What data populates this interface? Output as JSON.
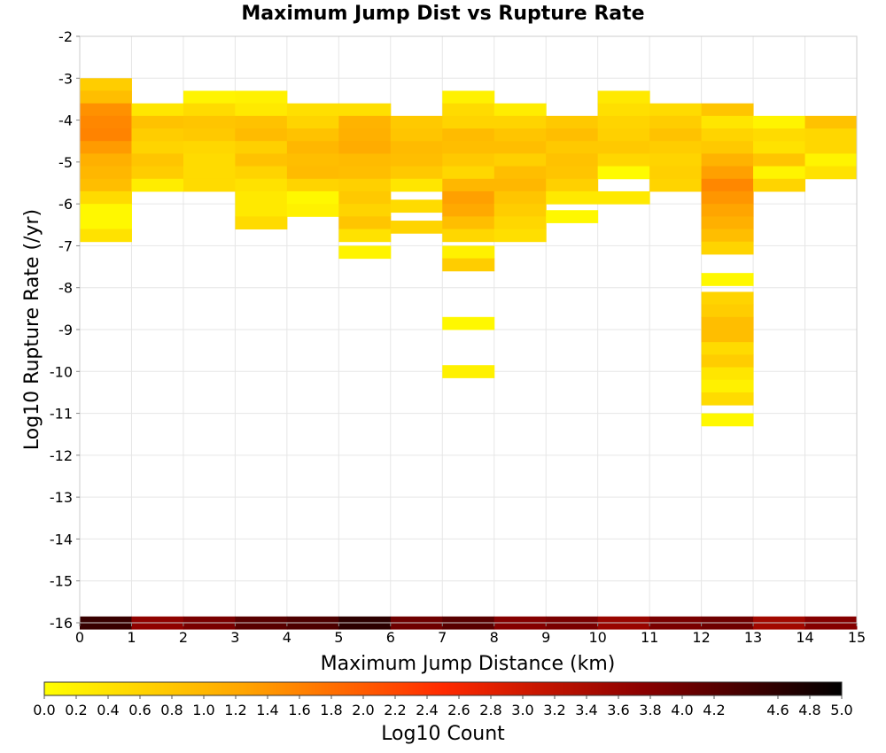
{
  "chart_data": {
    "type": "heatmap",
    "title": "Maximum Jump Dist vs Rupture Rate",
    "xlabel": "Maximum Jump Distance (km)",
    "ylabel": "Log10 Rupture Rate (/yr)",
    "xlim": [
      0,
      15
    ],
    "ylim": [
      -16,
      -2
    ],
    "x_ticks": [
      "0",
      "1",
      "2",
      "3",
      "4",
      "5",
      "6",
      "7",
      "8",
      "9",
      "10",
      "11",
      "12",
      "13",
      "14",
      "15"
    ],
    "y_ticks": [
      "-16",
      "-15",
      "-14",
      "-13",
      "-12",
      "-11",
      "-10",
      "-9",
      "-8",
      "-7",
      "-6",
      "-5",
      "-4",
      "-3",
      "-2"
    ],
    "y_bin_width": 0.3,
    "grid": true,
    "colorbar": {
      "label": "Log10 Count",
      "range": [
        0,
        5
      ],
      "ticks": [
        "0.0",
        "0.2",
        "0.4",
        "0.6",
        "0.8",
        "1.0",
        "1.2",
        "1.4",
        "1.6",
        "1.8",
        "2.0",
        "2.2",
        "2.4",
        "2.6",
        "2.8",
        "3.0",
        "3.2",
        "3.4",
        "3.6",
        "3.8",
        "4.0",
        "4.2",
        "4.6",
        "4.8",
        "5.0"
      ],
      "tick_values": [
        0,
        0.2,
        0.4,
        0.6,
        0.8,
        1.0,
        1.2,
        1.4,
        1.6,
        1.8,
        2.0,
        2.2,
        2.4,
        2.6,
        2.8,
        3.0,
        3.2,
        3.4,
        3.6,
        3.8,
        4.0,
        4.2,
        4.6,
        4.8,
        5.0
      ],
      "colors": [
        "#ffff00",
        "#ffa500",
        "#ff2a00",
        "#8b0000",
        "#000000"
      ]
    },
    "cells": [
      {
        "x": 0,
        "y": -3.15,
        "v": 0.7
      },
      {
        "x": 0,
        "y": -3.45,
        "v": 0.9
      },
      {
        "x": 0,
        "y": -3.75,
        "v": 1.45
      },
      {
        "x": 0,
        "y": -4.05,
        "v": 1.55
      },
      {
        "x": 0,
        "y": -4.35,
        "v": 1.6
      },
      {
        "x": 0,
        "y": -4.65,
        "v": 1.35
      },
      {
        "x": 0,
        "y": -4.95,
        "v": 1.1
      },
      {
        "x": 0,
        "y": -5.25,
        "v": 1.0
      },
      {
        "x": 0,
        "y": -5.55,
        "v": 0.9
      },
      {
        "x": 0,
        "y": -5.85,
        "v": 0.5
      },
      {
        "x": 0,
        "y": -6.15,
        "v": 0.1
      },
      {
        "x": 0,
        "y": -6.45,
        "v": 0.1
      },
      {
        "x": 0,
        "y": -6.75,
        "v": 0.4
      },
      {
        "x": 1,
        "y": -3.75,
        "v": 0.35
      },
      {
        "x": 1,
        "y": -4.05,
        "v": 0.85
      },
      {
        "x": 1,
        "y": -4.35,
        "v": 0.7
      },
      {
        "x": 1,
        "y": -4.65,
        "v": 0.6
      },
      {
        "x": 1,
        "y": -4.95,
        "v": 0.8
      },
      {
        "x": 1,
        "y": -5.25,
        "v": 0.7
      },
      {
        "x": 1,
        "y": -5.55,
        "v": 0.25
      },
      {
        "x": 2,
        "y": -3.45,
        "v": 0.15
      },
      {
        "x": 2,
        "y": -3.75,
        "v": 0.5
      },
      {
        "x": 2,
        "y": -4.05,
        "v": 0.8
      },
      {
        "x": 2,
        "y": -4.35,
        "v": 0.75
      },
      {
        "x": 2,
        "y": -4.65,
        "v": 0.55
      },
      {
        "x": 2,
        "y": -4.95,
        "v": 0.5
      },
      {
        "x": 2,
        "y": -5.25,
        "v": 0.5
      },
      {
        "x": 2,
        "y": -5.55,
        "v": 0.5
      },
      {
        "x": 3,
        "y": -3.45,
        "v": 0.2
      },
      {
        "x": 3,
        "y": -3.75,
        "v": 0.3
      },
      {
        "x": 3,
        "y": -4.05,
        "v": 0.85
      },
      {
        "x": 3,
        "y": -4.35,
        "v": 0.95
      },
      {
        "x": 3,
        "y": -4.65,
        "v": 0.65
      },
      {
        "x": 3,
        "y": -4.95,
        "v": 0.85
      },
      {
        "x": 3,
        "y": -5.25,
        "v": 0.6
      },
      {
        "x": 3,
        "y": -5.55,
        "v": 0.4
      },
      {
        "x": 3,
        "y": -5.85,
        "v": 0.3
      },
      {
        "x": 3,
        "y": -6.15,
        "v": 0.3
      },
      {
        "x": 3,
        "y": -6.45,
        "v": 0.5
      },
      {
        "x": 4,
        "y": -3.75,
        "v": 0.45
      },
      {
        "x": 4,
        "y": -4.05,
        "v": 0.6
      },
      {
        "x": 4,
        "y": -4.35,
        "v": 0.85
      },
      {
        "x": 4,
        "y": -4.65,
        "v": 1.0
      },
      {
        "x": 4,
        "y": -4.95,
        "v": 0.9
      },
      {
        "x": 4,
        "y": -5.25,
        "v": 0.95
      },
      {
        "x": 4,
        "y": -5.55,
        "v": 0.6
      },
      {
        "x": 4,
        "y": -5.85,
        "v": 0.1
      },
      {
        "x": 4,
        "y": -6.15,
        "v": 0.2
      },
      {
        "x": 5,
        "y": -3.75,
        "v": 0.45
      },
      {
        "x": 5,
        "y": -4.05,
        "v": 1.05
      },
      {
        "x": 5,
        "y": -4.35,
        "v": 1.1
      },
      {
        "x": 5,
        "y": -4.65,
        "v": 1.15
      },
      {
        "x": 5,
        "y": -4.95,
        "v": 0.95
      },
      {
        "x": 5,
        "y": -5.25,
        "v": 0.9
      },
      {
        "x": 5,
        "y": -5.55,
        "v": 0.65
      },
      {
        "x": 5,
        "y": -5.85,
        "v": 0.75
      },
      {
        "x": 5,
        "y": -6.15,
        "v": 0.6
      },
      {
        "x": 5,
        "y": -6.45,
        "v": 0.8
      },
      {
        "x": 5,
        "y": -6.75,
        "v": 0.4
      },
      {
        "x": 5,
        "y": -7.15,
        "v": 0.15
      },
      {
        "x": 6,
        "y": -4.05,
        "v": 0.75
      },
      {
        "x": 6,
        "y": -4.35,
        "v": 0.8
      },
      {
        "x": 6,
        "y": -4.65,
        "v": 0.95
      },
      {
        "x": 6,
        "y": -4.95,
        "v": 0.9
      },
      {
        "x": 6,
        "y": -5.25,
        "v": 0.75
      },
      {
        "x": 6,
        "y": -5.55,
        "v": 0.35
      },
      {
        "x": 6,
        "y": -6.05,
        "v": 0.5
      },
      {
        "x": 6,
        "y": -6.55,
        "v": 0.6
      },
      {
        "x": 7,
        "y": -3.45,
        "v": 0.2
      },
      {
        "x": 7,
        "y": -3.75,
        "v": 0.5
      },
      {
        "x": 7,
        "y": -4.05,
        "v": 0.6
      },
      {
        "x": 7,
        "y": -4.35,
        "v": 0.95
      },
      {
        "x": 7,
        "y": -4.65,
        "v": 0.9
      },
      {
        "x": 7,
        "y": -4.95,
        "v": 0.75
      },
      {
        "x": 7,
        "y": -5.25,
        "v": 0.55
      },
      {
        "x": 7,
        "y": -5.55,
        "v": 1.0
      },
      {
        "x": 7,
        "y": -5.85,
        "v": 1.3
      },
      {
        "x": 7,
        "y": -6.15,
        "v": 1.2
      },
      {
        "x": 7,
        "y": -6.45,
        "v": 0.9
      },
      {
        "x": 7,
        "y": -6.75,
        "v": 0.55
      },
      {
        "x": 7,
        "y": -7.15,
        "v": 0.2
      },
      {
        "x": 7,
        "y": -7.45,
        "v": 0.7
      },
      {
        "x": 7,
        "y": -8.85,
        "v": 0.1
      },
      {
        "x": 7,
        "y": -10.0,
        "v": 0.2
      },
      {
        "x": 8,
        "y": -3.75,
        "v": 0.25
      },
      {
        "x": 8,
        "y": -4.05,
        "v": 0.6
      },
      {
        "x": 8,
        "y": -4.35,
        "v": 0.8
      },
      {
        "x": 8,
        "y": -4.65,
        "v": 0.9
      },
      {
        "x": 8,
        "y": -4.95,
        "v": 0.65
      },
      {
        "x": 8,
        "y": -5.25,
        "v": 0.9
      },
      {
        "x": 8,
        "y": -5.55,
        "v": 1.0
      },
      {
        "x": 8,
        "y": -5.85,
        "v": 0.8
      },
      {
        "x": 8,
        "y": -6.15,
        "v": 0.7
      },
      {
        "x": 8,
        "y": -6.45,
        "v": 0.55
      },
      {
        "x": 8,
        "y": -6.75,
        "v": 0.45
      },
      {
        "x": 9,
        "y": -4.05,
        "v": 0.75
      },
      {
        "x": 9,
        "y": -4.35,
        "v": 0.9
      },
      {
        "x": 9,
        "y": -4.65,
        "v": 0.75
      },
      {
        "x": 9,
        "y": -4.95,
        "v": 0.85
      },
      {
        "x": 9,
        "y": -5.25,
        "v": 0.8
      },
      {
        "x": 9,
        "y": -5.55,
        "v": 0.65
      },
      {
        "x": 9,
        "y": -5.85,
        "v": 0.3
      },
      {
        "x": 9,
        "y": -6.3,
        "v": 0.1
      },
      {
        "x": 10,
        "y": -3.45,
        "v": 0.3
      },
      {
        "x": 10,
        "y": -3.75,
        "v": 0.45
      },
      {
        "x": 10,
        "y": -4.05,
        "v": 0.6
      },
      {
        "x": 10,
        "y": -4.35,
        "v": 0.65
      },
      {
        "x": 10,
        "y": -4.65,
        "v": 0.75
      },
      {
        "x": 10,
        "y": -4.95,
        "v": 0.55
      },
      {
        "x": 10,
        "y": -5.25,
        "v": 0.05
      },
      {
        "x": 10,
        "y": -5.85,
        "v": 0.3
      },
      {
        "x": 11,
        "y": -3.75,
        "v": 0.5
      },
      {
        "x": 11,
        "y": -4.05,
        "v": 0.7
      },
      {
        "x": 11,
        "y": -4.35,
        "v": 0.85
      },
      {
        "x": 11,
        "y": -4.65,
        "v": 0.7
      },
      {
        "x": 11,
        "y": -4.95,
        "v": 0.6
      },
      {
        "x": 11,
        "y": -5.25,
        "v": 0.65
      },
      {
        "x": 11,
        "y": -5.55,
        "v": 0.6
      },
      {
        "x": 12,
        "y": -3.75,
        "v": 0.8
      },
      {
        "x": 12,
        "y": -4.05,
        "v": 0.35
      },
      {
        "x": 12,
        "y": -4.35,
        "v": 0.6
      },
      {
        "x": 12,
        "y": -4.65,
        "v": 0.75
      },
      {
        "x": 12,
        "y": -4.95,
        "v": 1.05
      },
      {
        "x": 12,
        "y": -5.25,
        "v": 1.3
      },
      {
        "x": 12,
        "y": -5.55,
        "v": 1.55
      },
      {
        "x": 12,
        "y": -5.85,
        "v": 1.4
      },
      {
        "x": 12,
        "y": -6.15,
        "v": 1.25
      },
      {
        "x": 12,
        "y": -6.45,
        "v": 1.1
      },
      {
        "x": 12,
        "y": -6.75,
        "v": 0.9
      },
      {
        "x": 12,
        "y": -7.05,
        "v": 0.6
      },
      {
        "x": 12,
        "y": -7.8,
        "v": 0.1
      },
      {
        "x": 12,
        "y": -8.25,
        "v": 0.6
      },
      {
        "x": 12,
        "y": -8.55,
        "v": 0.7
      },
      {
        "x": 12,
        "y": -8.85,
        "v": 0.9
      },
      {
        "x": 12,
        "y": -9.15,
        "v": 0.9
      },
      {
        "x": 12,
        "y": -9.45,
        "v": 0.5
      },
      {
        "x": 12,
        "y": -9.75,
        "v": 0.7
      },
      {
        "x": 12,
        "y": -10.05,
        "v": 0.35
      },
      {
        "x": 12,
        "y": -10.35,
        "v": 0.2
      },
      {
        "x": 12,
        "y": -10.65,
        "v": 0.5
      },
      {
        "x": 12,
        "y": -11.15,
        "v": 0.1
      },
      {
        "x": 13,
        "y": -4.05,
        "v": 0.15
      },
      {
        "x": 13,
        "y": -4.35,
        "v": 0.5
      },
      {
        "x": 13,
        "y": -4.65,
        "v": 0.4
      },
      {
        "x": 13,
        "y": -4.95,
        "v": 0.8
      },
      {
        "x": 13,
        "y": -5.25,
        "v": 0.15
      },
      {
        "x": 13,
        "y": -5.55,
        "v": 0.6
      },
      {
        "x": 14,
        "y": -4.05,
        "v": 0.85
      },
      {
        "x": 14,
        "y": -4.35,
        "v": 0.55
      },
      {
        "x": 14,
        "y": -4.65,
        "v": 0.55
      },
      {
        "x": 14,
        "y": -4.95,
        "v": 0.15
      },
      {
        "x": 14,
        "y": -5.25,
        "v": 0.4
      },
      {
        "x": 0,
        "y": -16.0,
        "v": 4.5
      },
      {
        "x": 1,
        "y": -16.0,
        "v": 3.7
      },
      {
        "x": 2,
        "y": -16.0,
        "v": 3.9
      },
      {
        "x": 3,
        "y": -16.0,
        "v": 4.2
      },
      {
        "x": 4,
        "y": -16.0,
        "v": 4.3
      },
      {
        "x": 5,
        "y": -16.0,
        "v": 4.6
      },
      {
        "x": 6,
        "y": -16.0,
        "v": 4.0
      },
      {
        "x": 7,
        "y": -16.0,
        "v": 4.2
      },
      {
        "x": 8,
        "y": -16.0,
        "v": 3.8
      },
      {
        "x": 9,
        "y": -16.0,
        "v": 3.9
      },
      {
        "x": 10,
        "y": -16.0,
        "v": 3.6
      },
      {
        "x": 11,
        "y": -16.0,
        "v": 3.9
      },
      {
        "x": 12,
        "y": -16.0,
        "v": 4.0
      },
      {
        "x": 13,
        "y": -16.0,
        "v": 3.5
      },
      {
        "x": 14,
        "y": -16.0,
        "v": 3.8
      }
    ]
  }
}
